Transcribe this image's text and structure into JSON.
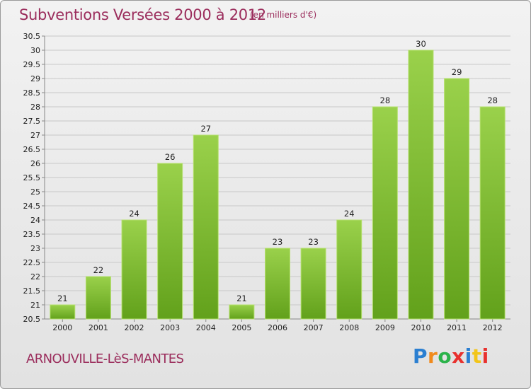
{
  "header": {
    "title": "Subventions Versées 2000 à 2012",
    "unit": "(en milliers d'€)"
  },
  "footer": {
    "city": "ARNOUVILLE-LèS-MANTES",
    "logo": {
      "text": "Proxiti",
      "letter_colors": [
        "#2b7fd1",
        "#f08a1c",
        "#2bb34a",
        "#e8312e",
        "#2b7fd1",
        "#f2c51a",
        "#e8312e"
      ]
    }
  },
  "colors": {
    "title": "#9b2d5c",
    "bar_light": "#9ad14b",
    "bar_dark": "#62a11b",
    "grid": "#c8c8c8"
  },
  "chart_data": {
    "type": "bar",
    "title": "Subventions Versées 2000 à 2012",
    "categories": [
      "2000",
      "2001",
      "2002",
      "2003",
      "2004",
      "2005",
      "2006",
      "2007",
      "2008",
      "2009",
      "2010",
      "2011",
      "2012"
    ],
    "values": [
      21,
      22,
      24,
      26,
      27,
      21,
      23,
      23,
      24,
      28,
      30,
      29,
      28
    ],
    "ylim": [
      20.5,
      30.5
    ],
    "yticks": [
      "20.5",
      "21",
      "21.5",
      "22",
      "22.5",
      "23",
      "23.5",
      "24",
      "24.5",
      "25",
      "25.5",
      "26",
      "26.5",
      "27",
      "27.5",
      "28",
      "28.5",
      "29",
      "29.5",
      "30",
      "30.5"
    ],
    "grid": true,
    "legend": "none"
  }
}
